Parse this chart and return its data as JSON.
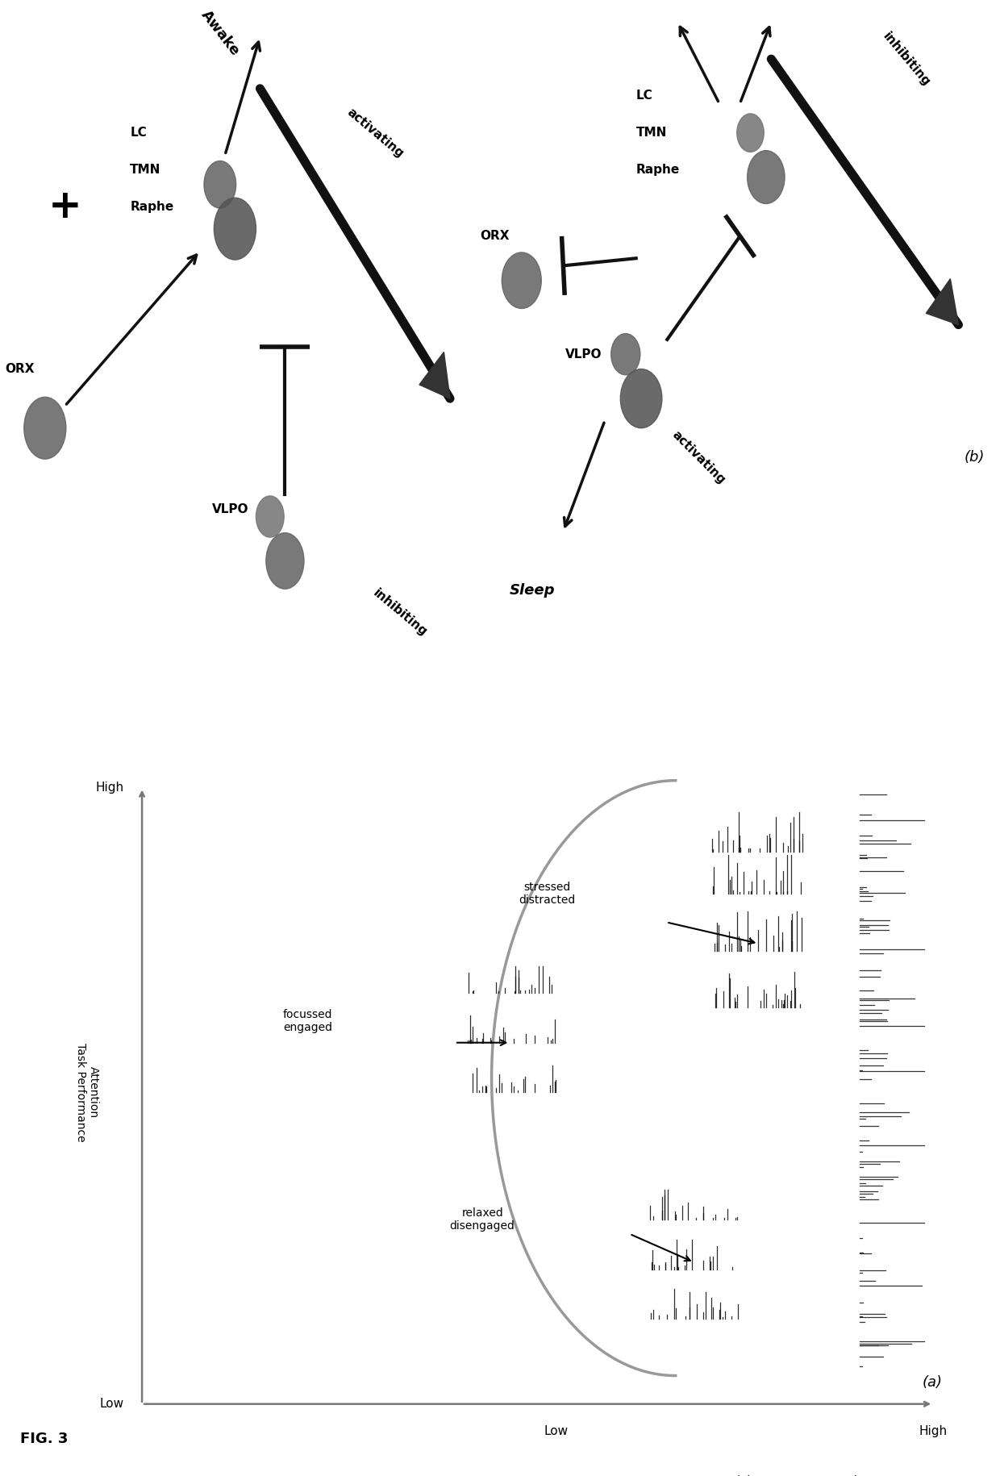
{
  "fig_label": "FIG. 3",
  "panel_a_label": "(a)",
  "panel_b_label": "(b)",
  "background_color": "#ffffff",
  "text_color": "#000000",
  "dark_color": "#111111",
  "gray_color": "#555555",
  "arc_color": "#aaaaaa",
  "spike_color": "#111111",
  "triangle_color": "#444444",
  "line_lw": 6,
  "arrow_lw": 2.5
}
